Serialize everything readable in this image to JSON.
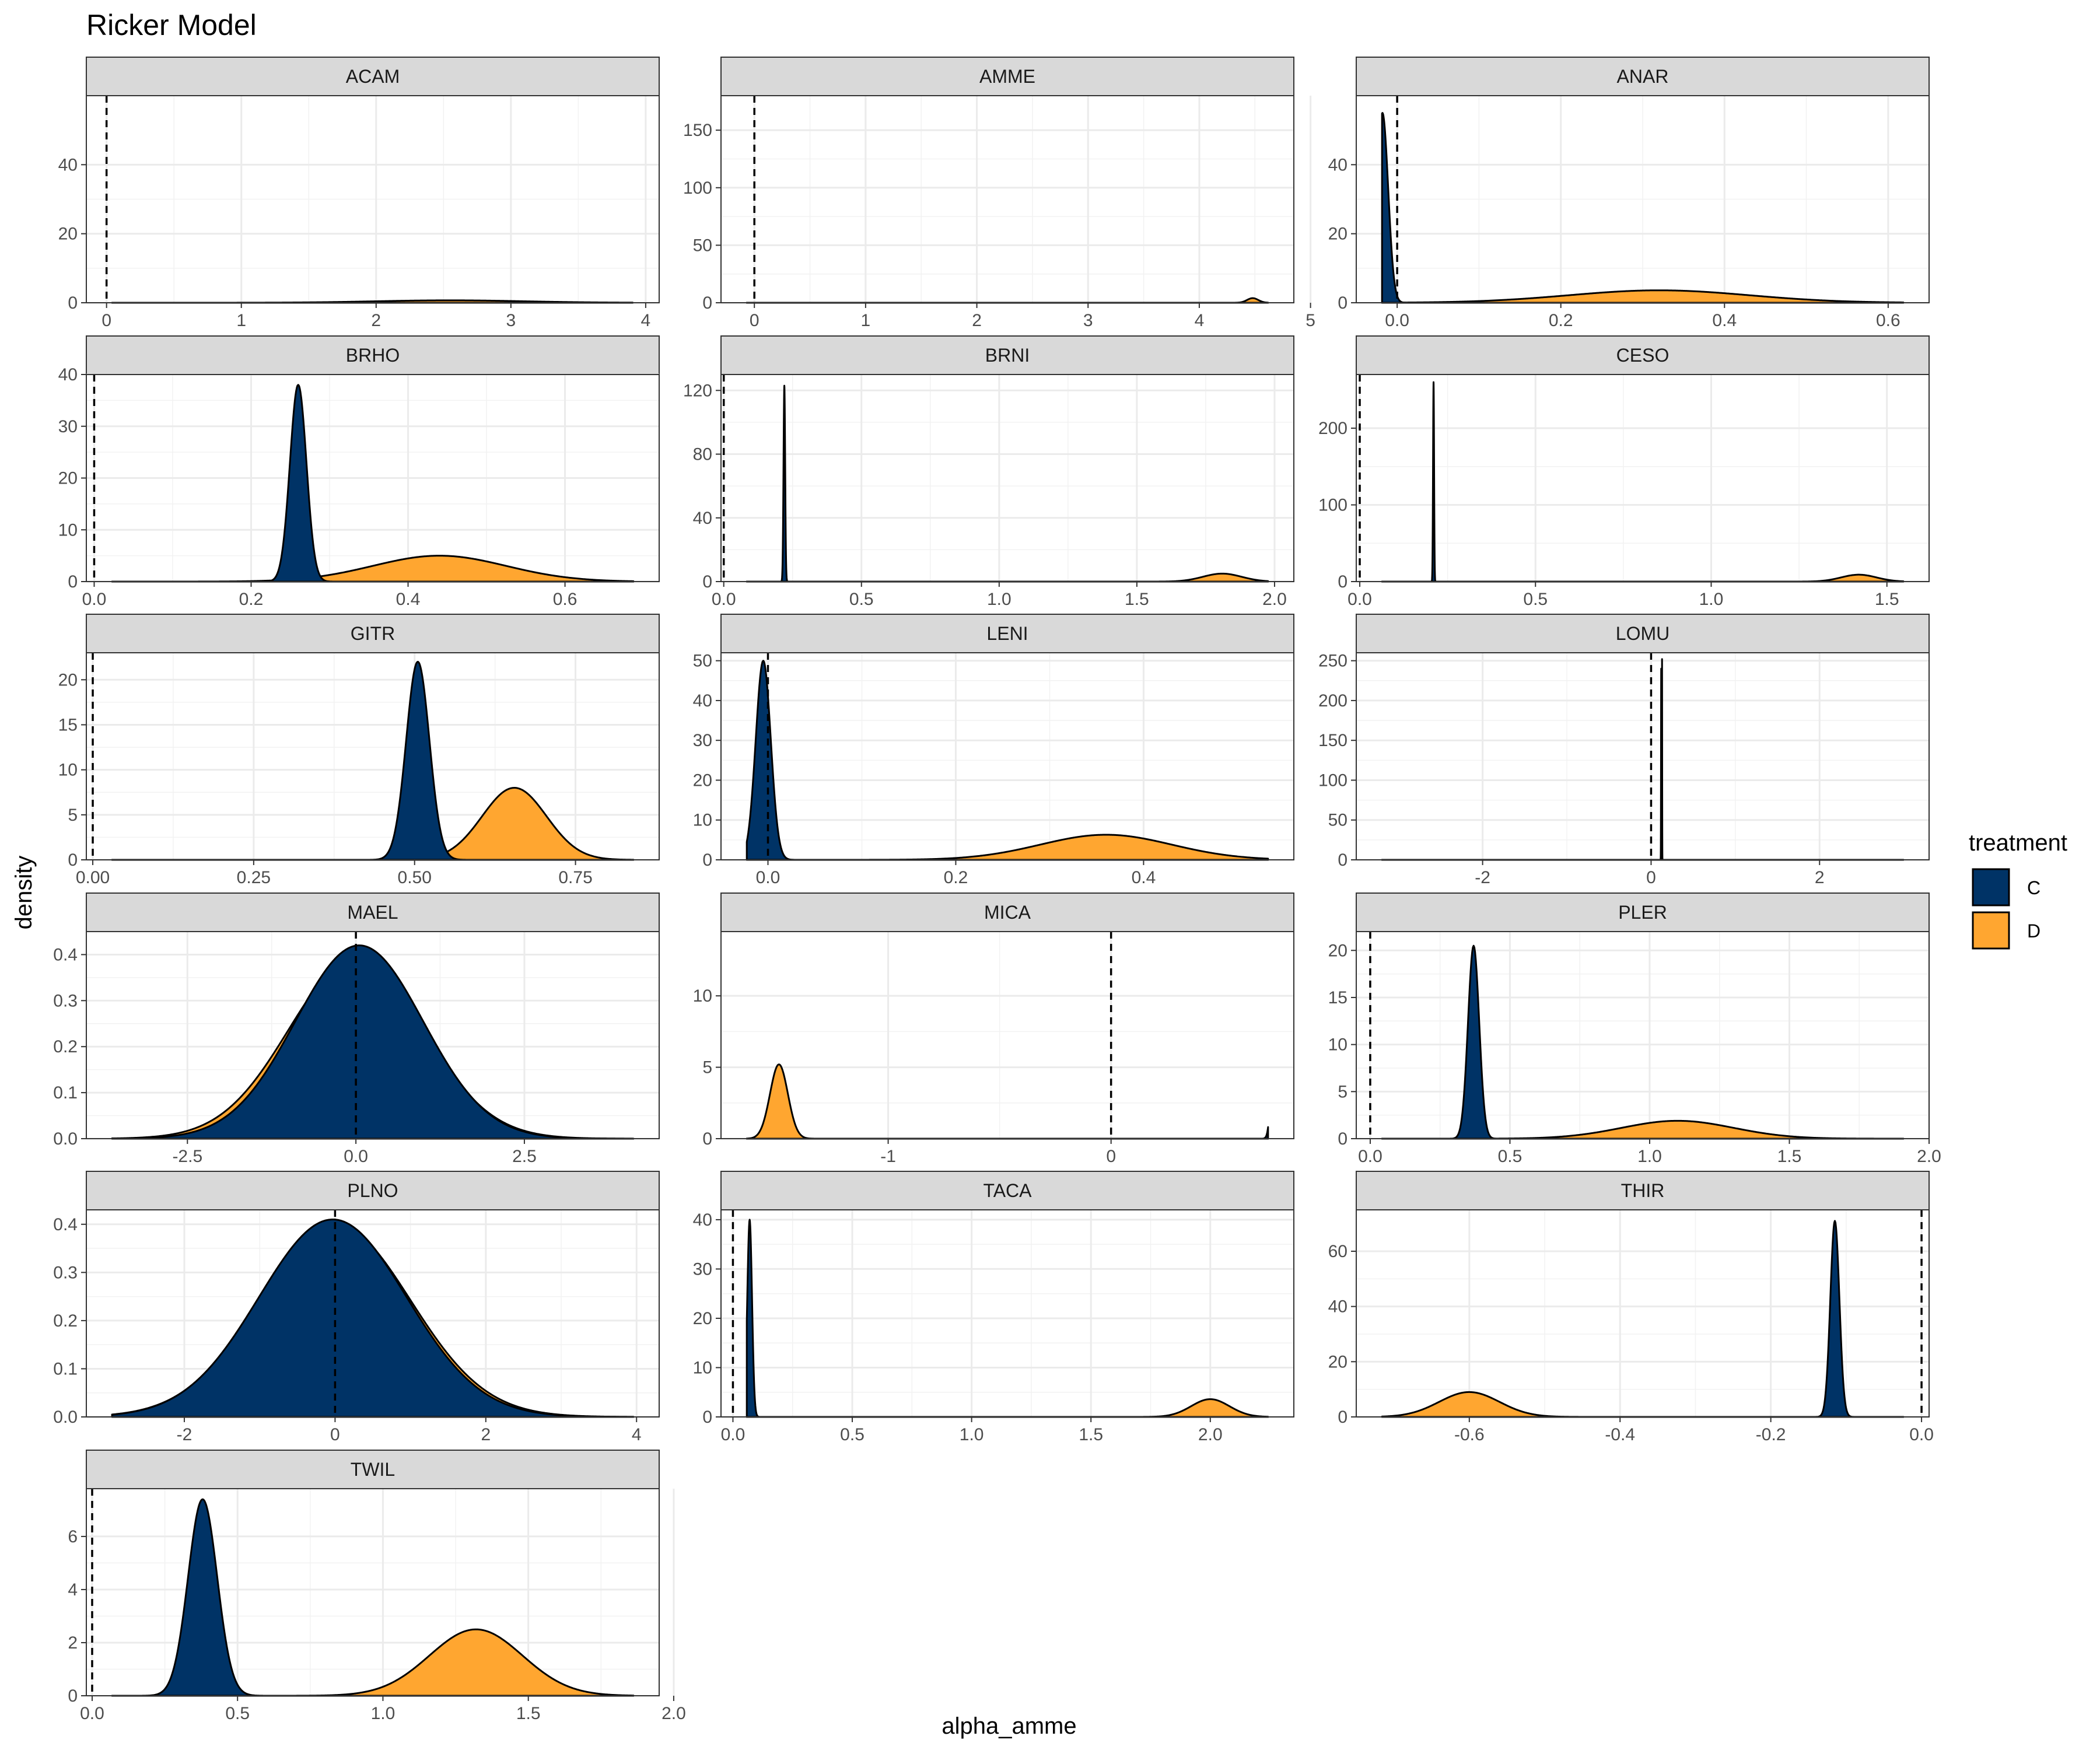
{
  "chart_data": {
    "type": "density",
    "title": "Ricker Model",
    "xlabel": "alpha_amme",
    "ylabel": "density",
    "legend": {
      "title": "treatment",
      "position": "right",
      "entries": [
        {
          "name": "C",
          "color": "#003366"
        },
        {
          "name": "D",
          "color": "#FFA630"
        }
      ]
    },
    "reference_line_x": 0,
    "grid": true,
    "panels": [
      {
        "name": "ACAM",
        "xlim": [
          -0.15,
          4.1
        ],
        "ylim": [
          0,
          60
        ],
        "xticks": [
          0,
          1,
          2,
          3,
          4
        ],
        "xticklabels": [
          "0",
          "1",
          "2",
          "3",
          "4"
        ],
        "yticks": [
          0,
          20,
          40
        ],
        "yticklabels": [
          "0",
          "20",
          "40"
        ],
        "series": [
          {
            "name": "C",
            "mean": -0.1,
            "sd": 0.007,
            "peak": 56
          },
          {
            "name": "D",
            "mean": 2.55,
            "sd": 0.55,
            "peak": 0.7
          }
        ]
      },
      {
        "name": "AMME",
        "xlim": [
          -0.3,
          4.85
        ],
        "ylim": [
          0,
          180
        ],
        "xticks": [
          0,
          1,
          2,
          3,
          4,
          5
        ],
        "xticklabels": [
          "0",
          "1",
          "2",
          "3",
          "4",
          "5"
        ],
        "yticks": [
          0,
          50,
          100,
          150
        ],
        "yticklabels": [
          "0",
          "50",
          "100",
          "150"
        ],
        "series": [
          {
            "name": "C",
            "mean": -0.27,
            "sd": 0.002,
            "peak": 170
          },
          {
            "name": "D",
            "mean": 4.48,
            "sd": 0.05,
            "peak": 4
          }
        ]
      },
      {
        "name": "ANAR",
        "xlim": [
          -0.05,
          0.65
        ],
        "ylim": [
          0,
          60
        ],
        "xticks": [
          0,
          0.2,
          0.4,
          0.6
        ],
        "xticklabels": [
          "0.0",
          "0.2",
          "0.4",
          "0.6"
        ],
        "yticks": [
          0,
          20,
          40
        ],
        "yticklabels": [
          "0",
          "20",
          "40"
        ],
        "series": [
          {
            "name": "C",
            "mean": -0.018,
            "sd": 0.007,
            "peak": 55
          },
          {
            "name": "D",
            "mean": 0.32,
            "sd": 0.11,
            "peak": 3.6
          }
        ]
      },
      {
        "name": "BRHO",
        "xlim": [
          -0.01,
          0.72
        ],
        "ylim": [
          0,
          40
        ],
        "xticks": [
          0,
          0.2,
          0.4,
          0.6
        ],
        "xticklabels": [
          "0.0",
          "0.2",
          "0.4",
          "0.6"
        ],
        "yticks": [
          0,
          10,
          20,
          30,
          40
        ],
        "yticklabels": [
          "0",
          "10",
          "20",
          "30",
          "40"
        ],
        "series": [
          {
            "name": "C",
            "mean": 0.26,
            "sd": 0.0105,
            "peak": 38
          },
          {
            "name": "D",
            "mean": 0.44,
            "sd": 0.085,
            "peak": 5
          }
        ]
      },
      {
        "name": "BRNI",
        "xlim": [
          -0.01,
          2.07
        ],
        "ylim": [
          0,
          130
        ],
        "xticks": [
          0,
          0.5,
          1.0,
          1.5,
          2.0
        ],
        "xticklabels": [
          "0.0",
          "0.5",
          "1.0",
          "1.5",
          "2.0"
        ],
        "yticks": [
          0,
          40,
          80,
          120
        ],
        "yticklabels": [
          "0",
          "40",
          "80",
          "120"
        ],
        "series": [
          {
            "name": "C",
            "mean": 0.22,
            "sd": 0.003,
            "peak": 123
          },
          {
            "name": "D",
            "mean": 1.81,
            "sd": 0.07,
            "peak": 5
          }
        ]
      },
      {
        "name": "CESO",
        "xlim": [
          -0.01,
          1.62
        ],
        "ylim": [
          0,
          270
        ],
        "xticks": [
          0,
          0.5,
          1.0,
          1.5
        ],
        "xticklabels": [
          "0.0",
          "0.5",
          "1.0",
          "1.5"
        ],
        "yticks": [
          0,
          100,
          200
        ],
        "yticklabels": [
          "0",
          "100",
          "200"
        ],
        "series": [
          {
            "name": "C",
            "mean": 0.21,
            "sd": 0.0015,
            "peak": 260
          },
          {
            "name": "D",
            "mean": 1.42,
            "sd": 0.05,
            "peak": 9
          }
        ]
      },
      {
        "name": "GITR",
        "xlim": [
          -0.01,
          0.88
        ],
        "ylim": [
          0,
          23
        ],
        "xticks": [
          0,
          0.25,
          0.5,
          0.75
        ],
        "xticklabels": [
          "0.00",
          "0.25",
          "0.50",
          "0.75"
        ],
        "yticks": [
          0,
          5,
          10,
          15,
          20
        ],
        "yticklabels": [
          "0",
          "5",
          "10",
          "15",
          "20"
        ],
        "series": [
          {
            "name": "C",
            "mean": 0.505,
            "sd": 0.018,
            "peak": 22
          },
          {
            "name": "D",
            "mean": 0.655,
            "sd": 0.05,
            "peak": 8
          }
        ]
      },
      {
        "name": "LENI",
        "xlim": [
          -0.05,
          0.56
        ],
        "ylim": [
          0,
          52
        ],
        "xticks": [
          0,
          0.2,
          0.4
        ],
        "xticklabels": [
          "0.0",
          "0.2",
          "0.4"
        ],
        "yticks": [
          0,
          10,
          20,
          30,
          40,
          50
        ],
        "yticklabels": [
          "0",
          "10",
          "20",
          "30",
          "40",
          "50"
        ],
        "series": [
          {
            "name": "C",
            "mean": -0.005,
            "sd": 0.008,
            "peak": 50
          },
          {
            "name": "D",
            "mean": 0.36,
            "sd": 0.07,
            "peak": 6.3
          }
        ]
      },
      {
        "name": "LOMU",
        "xlim": [
          -3.5,
          3.3
        ],
        "ylim": [
          0,
          260
        ],
        "xticks": [
          -2,
          0,
          2
        ],
        "xticklabels": [
          "-2",
          "0",
          "2"
        ],
        "yticks": [
          0,
          50,
          100,
          150,
          200,
          250
        ],
        "yticklabels": [
          "0",
          "50",
          "100",
          "150",
          "200",
          "250"
        ],
        "series": [
          {
            "name": "C",
            "mean": 0.13,
            "sd": 0.0015,
            "peak": 252
          },
          {
            "name": "D",
            "mean": 0.12,
            "sd": 0.002,
            "peak": 240
          }
        ]
      },
      {
        "name": "MAEL",
        "xlim": [
          -4.0,
          4.5
        ],
        "ylim": [
          0,
          0.45
        ],
        "xticks": [
          -2.5,
          0,
          2.5
        ],
        "xticklabels": [
          "-2.5",
          "0.0",
          "2.5"
        ],
        "yticks": [
          0,
          0.1,
          0.2,
          0.3,
          0.4
        ],
        "yticklabels": [
          "0.0",
          "0.1",
          "0.2",
          "0.3",
          "0.4"
        ],
        "series": [
          {
            "name": "C",
            "mean": 0.05,
            "sd": 0.95,
            "peak": 0.42
          },
          {
            "name": "D",
            "mean": 0.0,
            "sd": 1.0,
            "peak": 0.39
          }
        ]
      },
      {
        "name": "MICA",
        "xlim": [
          -1.75,
          0.82
        ],
        "ylim": [
          0,
          14.5
        ],
        "xticks": [
          -1,
          0
        ],
        "xticklabels": [
          "-1",
          "0"
        ],
        "yticks": [
          0,
          5,
          10
        ],
        "yticklabels": [
          "0",
          "5",
          "10"
        ],
        "series": [
          {
            "name": "C",
            "mean": 0.74,
            "sd": 0.015,
            "peak": 13.7
          },
          {
            "name": "D",
            "mean": -1.49,
            "sd": 0.04,
            "peak": 5.2
          }
        ]
      },
      {
        "name": "PLER",
        "xlim": [
          -0.05,
          2.0
        ],
        "ylim": [
          0,
          22
        ],
        "xticks": [
          0,
          0.5,
          1.0,
          1.5,
          2.0
        ],
        "xticklabels": [
          "0.0",
          "0.5",
          "1.0",
          "1.5",
          "2.0"
        ],
        "yticks": [
          0,
          5,
          10,
          15,
          20
        ],
        "yticklabels": [
          "0",
          "5",
          "10",
          "15",
          "20"
        ],
        "series": [
          {
            "name": "C",
            "mean": 0.37,
            "sd": 0.02,
            "peak": 20.5
          },
          {
            "name": "D",
            "mean": 1.1,
            "sd": 0.2,
            "peak": 1.9
          }
        ]
      },
      {
        "name": "PLNO",
        "xlim": [
          -3.3,
          4.3
        ],
        "ylim": [
          0,
          0.43
        ],
        "xticks": [
          -2,
          0,
          2,
          4
        ],
        "xticklabels": [
          "-2",
          "0",
          "2",
          "4"
        ],
        "yticks": [
          0,
          0.1,
          0.2,
          0.3,
          0.4
        ],
        "yticklabels": [
          "0.0",
          "0.1",
          "0.2",
          "0.3",
          "0.4"
        ],
        "series": [
          {
            "name": "C",
            "mean": -0.03,
            "sd": 0.98,
            "peak": 0.41
          },
          {
            "name": "D",
            "mean": 0.0,
            "sd": 1.0,
            "peak": 0.4
          }
        ]
      },
      {
        "name": "TACA",
        "xlim": [
          -0.05,
          2.35
        ],
        "ylim": [
          0,
          42
        ],
        "xticks": [
          0,
          0.5,
          1.0,
          1.5,
          2.0
        ],
        "xticklabels": [
          "0.0",
          "0.5",
          "1.0",
          "1.5",
          "2.0"
        ],
        "yticks": [
          0,
          10,
          20,
          30,
          40
        ],
        "yticklabels": [
          "0",
          "10",
          "20",
          "30",
          "40"
        ],
        "series": [
          {
            "name": "C",
            "mean": 0.07,
            "sd": 0.01,
            "peak": 40
          },
          {
            "name": "D",
            "mean": 2.0,
            "sd": 0.08,
            "peak": 3.6
          }
        ]
      },
      {
        "name": "THIR",
        "xlim": [
          -0.75,
          0.01
        ],
        "ylim": [
          0,
          75
        ],
        "xticks": [
          -0.6,
          -0.4,
          -0.2,
          0
        ],
        "xticklabels": [
          "-0.6",
          "-0.4",
          "-0.2",
          "0.0"
        ],
        "yticks": [
          0,
          20,
          40,
          60
        ],
        "yticklabels": [
          "0",
          "20",
          "40",
          "60"
        ],
        "series": [
          {
            "name": "C",
            "mean": -0.115,
            "sd": 0.006,
            "peak": 71
          },
          {
            "name": "D",
            "mean": -0.6,
            "sd": 0.04,
            "peak": 9
          }
        ]
      },
      {
        "name": "TWIL",
        "xlim": [
          -0.02,
          1.95
        ],
        "ylim": [
          0,
          7.8
        ],
        "xticks": [
          0,
          0.5,
          1.0,
          1.5,
          2.0
        ],
        "xticklabels": [
          "0.0",
          "0.5",
          "1.0",
          "1.5",
          "2.0"
        ],
        "yticks": [
          0,
          2,
          4,
          6
        ],
        "yticklabels": [
          "0",
          "2",
          "4",
          "6"
        ],
        "series": [
          {
            "name": "C",
            "mean": 0.38,
            "sd": 0.05,
            "peak": 7.4
          },
          {
            "name": "D",
            "mean": 1.32,
            "sd": 0.16,
            "peak": 2.5
          }
        ]
      }
    ]
  }
}
